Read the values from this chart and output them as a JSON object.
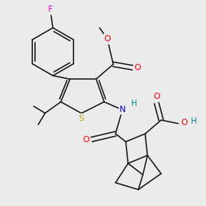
{
  "background_color": "#ebebeb",
  "figsize": [
    3.0,
    3.0
  ],
  "dpi": 100,
  "atom_colors": {
    "F": "#ee00ee",
    "O": "#ff0000",
    "N": "#0000cc",
    "S": "#aaaa00",
    "H": "#008888",
    "C": "#1a1a1a"
  },
  "bond_lw": 1.3,
  "font_size": 8.5
}
